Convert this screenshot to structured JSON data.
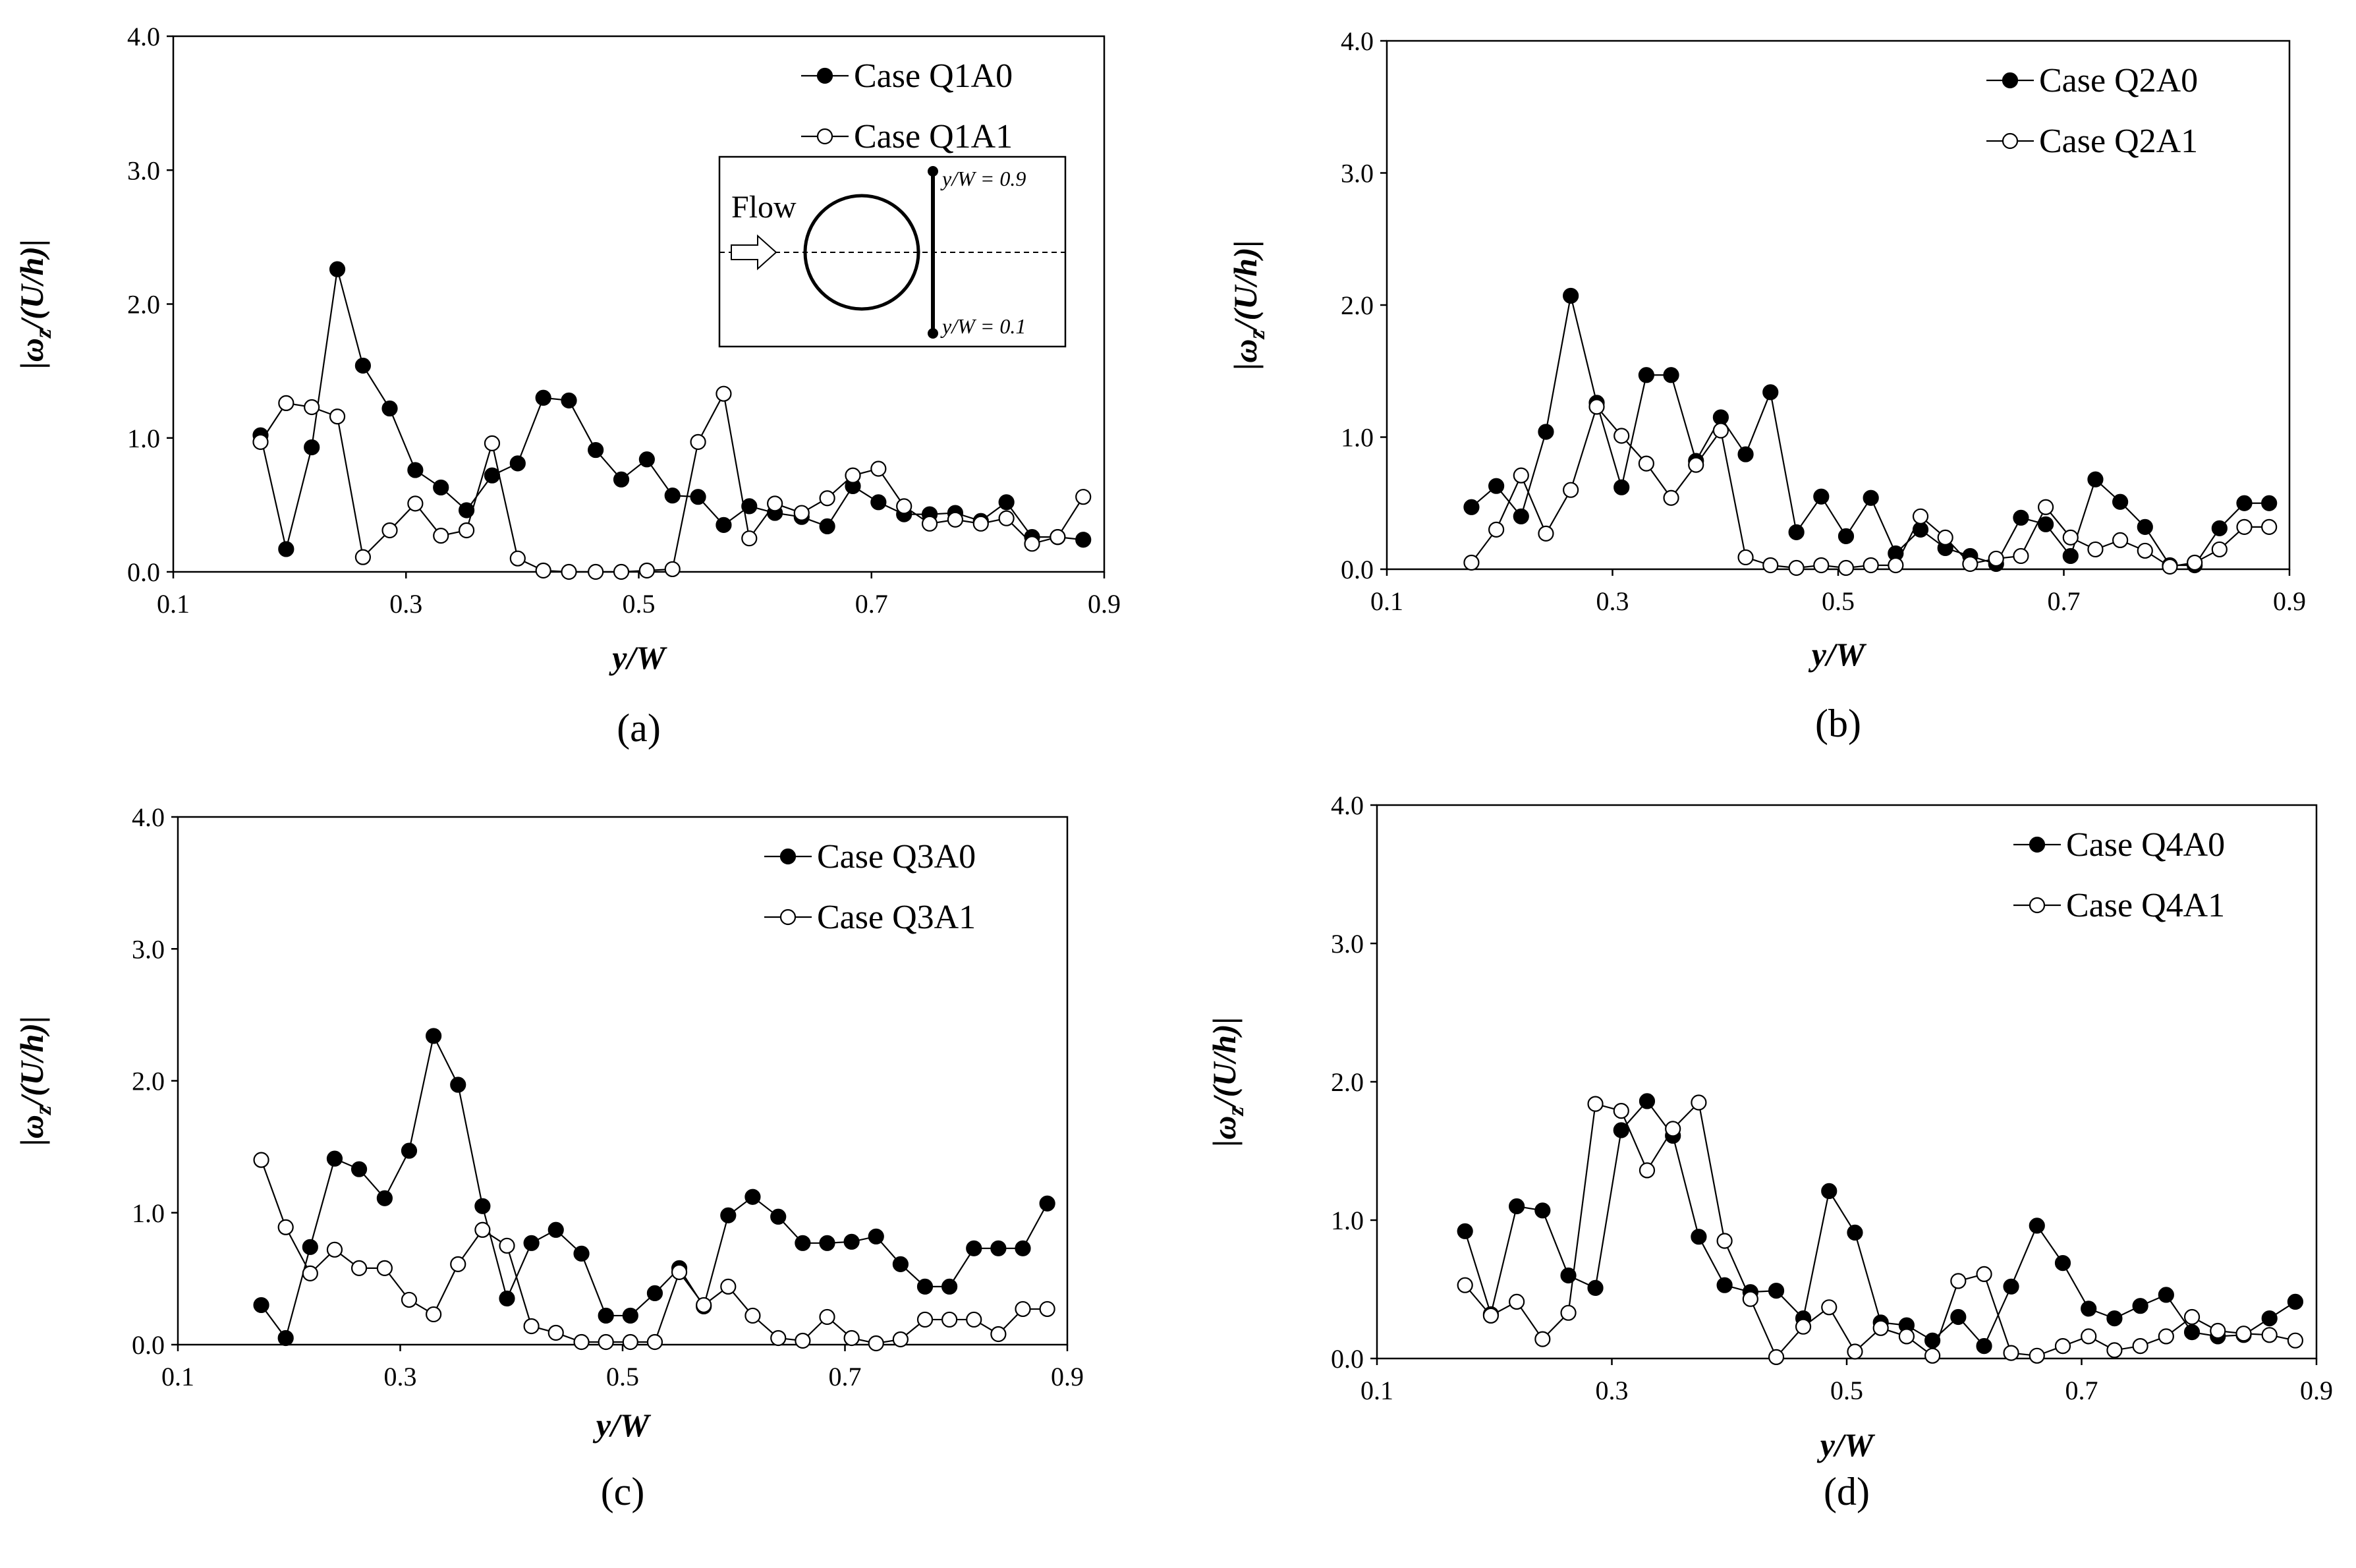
{
  "chart_data": [
    {
      "id": "a",
      "type": "line",
      "panel_label": "(a)",
      "xlabel": "y/W",
      "ylabel": "|ω_z/(U/h)|",
      "xlim": [
        0.1,
        0.9
      ],
      "ylim": [
        0.0,
        4.0
      ],
      "xticks": [
        "0.1",
        "0.3",
        "0.5",
        "0.7",
        "0.9"
      ],
      "yticks": [
        "0.0",
        "1.0",
        "2.0",
        "3.0",
        "4.0"
      ],
      "legend_position": "top-right",
      "x": [
        0.175,
        0.197,
        0.219,
        0.241,
        0.263,
        0.286,
        0.308,
        0.33,
        0.352,
        0.374,
        0.396,
        0.418,
        0.44,
        0.463,
        0.485,
        0.507,
        0.529,
        0.551,
        0.573,
        0.595,
        0.617,
        0.64,
        0.662,
        0.684,
        0.706,
        0.728,
        0.75,
        0.772,
        0.794,
        0.816,
        0.838,
        0.86,
        0.882
      ],
      "series": [
        {
          "name": "Case Q1A0",
          "marker": "filled",
          "values": [
            1.02,
            0.17,
            0.93,
            2.26,
            1.54,
            1.22,
            0.76,
            0.63,
            0.46,
            0.72,
            0.81,
            1.3,
            1.28,
            0.91,
            0.69,
            0.84,
            0.57,
            0.56,
            0.35,
            0.49,
            0.44,
            0.41,
            0.34,
            0.64,
            0.52,
            0.43,
            0.43,
            0.44,
            0.38,
            0.52,
            0.26,
            0.26,
            0.24
          ]
        },
        {
          "name": "Case Q1A1",
          "marker": "open",
          "values": [
            0.97,
            1.26,
            1.23,
            1.16,
            0.11,
            0.31,
            0.51,
            0.27,
            0.31,
            0.96,
            0.1,
            0.01,
            0.0,
            0.0,
            0.0,
            0.01,
            0.02,
            0.97,
            1.33,
            0.25,
            0.51,
            0.44,
            0.55,
            0.72,
            0.77,
            0.49,
            0.36,
            0.39,
            0.36,
            0.4,
            0.21,
            0.26,
            0.56
          ]
        }
      ],
      "inset": {
        "flow_label": "Flow",
        "top_label": "y/W = 0.9",
        "bottom_label": "y/W = 0.1"
      }
    },
    {
      "id": "b",
      "type": "line",
      "panel_label": "(b)",
      "xlabel": "y/W",
      "ylabel": "|ω_z/(U/h)|",
      "xlim": [
        0.1,
        0.9
      ],
      "ylim": [
        0.0,
        4.0
      ],
      "xticks": [
        "0.1",
        "0.3",
        "0.5",
        "0.7",
        "0.9"
      ],
      "yticks": [
        "0.0",
        "1.0",
        "2.0",
        "3.0",
        "4.0"
      ],
      "legend_position": "top-right",
      "x": [
        0.175,
        0.197,
        0.219,
        0.241,
        0.263,
        0.286,
        0.308,
        0.33,
        0.352,
        0.374,
        0.396,
        0.418,
        0.44,
        0.463,
        0.485,
        0.507,
        0.529,
        0.551,
        0.573,
        0.595,
        0.617,
        0.64,
        0.662,
        0.684,
        0.706,
        0.728,
        0.75,
        0.772,
        0.794,
        0.816,
        0.838,
        0.86,
        0.882
      ],
      "series": [
        {
          "name": "Case Q2A0",
          "marker": "filled",
          "values": [
            0.47,
            0.63,
            0.4,
            1.04,
            2.07,
            1.26,
            0.62,
            1.47,
            1.47,
            0.82,
            1.15,
            0.87,
            1.34,
            0.28,
            0.55,
            0.25,
            0.54,
            0.12,
            0.3,
            0.16,
            0.1,
            0.04,
            0.39,
            0.34,
            0.1,
            0.68,
            0.51,
            0.32,
            0.03,
            0.03,
            0.31,
            0.5,
            0.5
          ]
        },
        {
          "name": "Case Q2A1",
          "marker": "open",
          "values": [
            0.05,
            0.3,
            0.71,
            0.27,
            0.6,
            1.23,
            1.01,
            0.8,
            0.54,
            0.79,
            1.05,
            0.09,
            0.03,
            0.01,
            0.03,
            0.01,
            0.03,
            0.03,
            0.4,
            0.24,
            0.04,
            0.08,
            0.1,
            0.47,
            0.24,
            0.15,
            0.22,
            0.14,
            0.02,
            0.05,
            0.15,
            0.32,
            0.32
          ]
        }
      ]
    },
    {
      "id": "c",
      "type": "line",
      "panel_label": "(c)",
      "xlabel": "y/W",
      "ylabel": "|ω_z/(U/h)|",
      "xlim": [
        0.1,
        0.9
      ],
      "ylim": [
        0.0,
        4.0
      ],
      "xticks": [
        "0.1",
        "0.3",
        "0.5",
        "0.7",
        "0.9"
      ],
      "yticks": [
        "0.0",
        "1.0",
        "2.0",
        "3.0",
        "4.0"
      ],
      "legend_position": "top-right",
      "x": [
        0.175,
        0.197,
        0.219,
        0.241,
        0.263,
        0.286,
        0.308,
        0.33,
        0.352,
        0.374,
        0.396,
        0.418,
        0.44,
        0.463,
        0.485,
        0.507,
        0.529,
        0.551,
        0.573,
        0.595,
        0.617,
        0.64,
        0.662,
        0.684,
        0.706,
        0.728,
        0.75,
        0.772,
        0.794,
        0.816,
        0.838,
        0.86,
        0.882
      ],
      "series": [
        {
          "name": "Case Q3A0",
          "marker": "filled",
          "values": [
            0.3,
            0.05,
            0.74,
            1.41,
            1.33,
            1.11,
            1.47,
            2.34,
            1.97,
            1.05,
            0.35,
            0.77,
            0.87,
            0.69,
            0.22,
            0.22,
            0.39,
            0.58,
            0.29,
            0.98,
            1.12,
            0.97,
            0.77,
            0.77,
            0.78,
            0.82,
            0.61,
            0.44,
            0.44,
            0.73,
            0.73,
            0.73,
            1.07
          ]
        },
        {
          "name": "Case Q3A1",
          "marker": "open",
          "values": [
            1.4,
            0.89,
            0.54,
            0.72,
            0.58,
            0.58,
            0.34,
            0.23,
            0.61,
            0.87,
            0.75,
            0.14,
            0.09,
            0.02,
            0.02,
            0.02,
            0.02,
            0.55,
            0.3,
            0.44,
            0.22,
            0.05,
            0.03,
            0.21,
            0.05,
            0.01,
            0.04,
            0.19,
            0.19,
            0.19,
            0.08,
            0.27,
            0.27
          ]
        }
      ]
    },
    {
      "id": "d",
      "type": "line",
      "panel_label": "(d)",
      "xlabel": "y/W",
      "ylabel": "|ω_z/(U/h)|",
      "xlim": [
        0.1,
        0.9
      ],
      "ylim": [
        0.0,
        4.0
      ],
      "xticks": [
        "0.1",
        "0.3",
        "0.5",
        "0.7",
        "0.9"
      ],
      "yticks": [
        "0.0",
        "1.0",
        "2.0",
        "3.0",
        "4.0"
      ],
      "legend_position": "top-right",
      "x": [
        0.175,
        0.197,
        0.219,
        0.241,
        0.263,
        0.286,
        0.308,
        0.33,
        0.352,
        0.374,
        0.396,
        0.418,
        0.44,
        0.463,
        0.485,
        0.507,
        0.529,
        0.551,
        0.573,
        0.595,
        0.617,
        0.64,
        0.662,
        0.684,
        0.706,
        0.728,
        0.75,
        0.772,
        0.794,
        0.816,
        0.838,
        0.86,
        0.882
      ],
      "series": [
        {
          "name": "Case Q4A0",
          "marker": "filled",
          "values": [
            0.92,
            0.32,
            1.1,
            1.07,
            0.6,
            0.51,
            1.65,
            1.86,
            1.61,
            0.88,
            0.53,
            0.48,
            0.49,
            0.29,
            1.21,
            0.91,
            0.26,
            0.24,
            0.13,
            0.3,
            0.09,
            0.52,
            0.96,
            0.69,
            0.36,
            0.29,
            0.38,
            0.46,
            0.19,
            0.16,
            0.17,
            0.29,
            0.41
          ]
        },
        {
          "name": "Case Q4A1",
          "marker": "open",
          "values": [
            0.53,
            0.31,
            0.41,
            0.14,
            0.33,
            1.84,
            1.79,
            1.36,
            1.66,
            1.85,
            0.85,
            0.43,
            0.01,
            0.23,
            0.37,
            0.05,
            0.22,
            0.16,
            0.02,
            0.56,
            0.61,
            0.04,
            0.02,
            0.09,
            0.16,
            0.06,
            0.09,
            0.16,
            0.3,
            0.2,
            0.18,
            0.17,
            0.13
          ]
        }
      ]
    }
  ]
}
